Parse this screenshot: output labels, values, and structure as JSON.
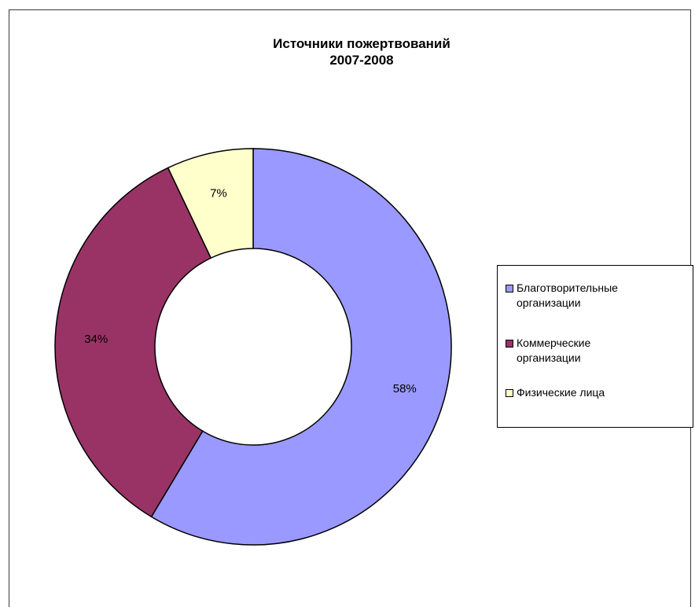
{
  "chart_data": {
    "type": "pie",
    "variant": "donut",
    "title": "Источники пожертвований",
    "subtitle": "2007-2008",
    "legend_position": "right",
    "slices": [
      {
        "label": "Благотворительные организации",
        "label_lines": [
          "Благотворительные",
          "организации"
        ],
        "value": 58,
        "display": "58%",
        "color": "#9999FF"
      },
      {
        "label": "Коммерческие организации",
        "label_lines": [
          "Коммерческие",
          "организации"
        ],
        "value": 34,
        "display": "34%",
        "color": "#993366"
      },
      {
        "label": "Физические лица",
        "label_lines": [
          "Физические лица"
        ],
        "value": 7,
        "display": "7%",
        "color": "#FFFFCC"
      }
    ]
  }
}
